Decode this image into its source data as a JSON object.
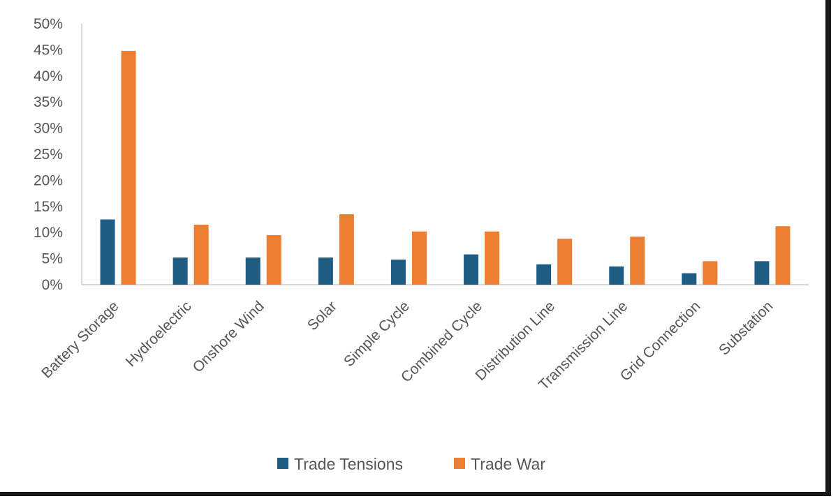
{
  "chart_data": {
    "type": "bar",
    "categories": [
      "Battery Storage",
      "Hydroelectric",
      "Onshore Wind",
      "Solar",
      "Simple Cycle",
      "Combined Cycle",
      "Distribution Line",
      "Transmission Line",
      "Grid Connection",
      "Substation"
    ],
    "series": [
      {
        "name": "Trade Tensions",
        "color": "#1f5c84",
        "values": [
          12.5,
          5.2,
          5.2,
          5.2,
          4.8,
          5.8,
          3.9,
          3.5,
          2.2,
          4.5
        ]
      },
      {
        "name": "Trade War",
        "color": "#ed7d31",
        "values": [
          44.8,
          11.5,
          9.5,
          13.5,
          10.2,
          10.2,
          8.8,
          9.2,
          4.5,
          11.2
        ]
      }
    ],
    "yticks": [
      "0%",
      "5%",
      "10%",
      "15%",
      "20%",
      "25%",
      "30%",
      "35%",
      "40%",
      "45%",
      "50%"
    ],
    "ylim": [
      0,
      50
    ],
    "grid": false,
    "legend_position": "bottom"
  }
}
